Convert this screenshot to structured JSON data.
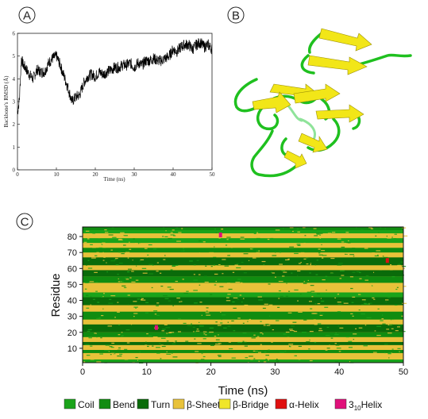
{
  "panels": {
    "a": {
      "label": "A"
    },
    "b": {
      "label": "B"
    },
    "c": {
      "label": "C"
    }
  },
  "chart_data": [
    {
      "type": "line",
      "panel": "A",
      "xlabel": "Time (ns)",
      "ylabel": "Backbone's RMSD (Å)",
      "xlim": [
        0,
        50
      ],
      "ylim": [
        0,
        6
      ],
      "xticks": [
        "0",
        "10",
        "20",
        "30",
        "40",
        "50"
      ],
      "yticks": [
        "0",
        "1",
        "2",
        "3",
        "4",
        "5",
        "6"
      ],
      "series": [
        {
          "color": "#000000",
          "x": [
            0,
            0.5,
            1,
            1.5,
            2,
            3,
            4,
            5,
            6,
            7,
            8,
            9,
            10,
            11,
            12,
            13,
            14,
            15,
            16,
            17,
            18,
            19,
            20,
            21,
            22,
            23,
            24,
            25,
            26,
            27,
            28,
            29,
            30,
            31,
            32,
            33,
            34,
            35,
            36,
            37,
            38,
            39,
            40,
            41,
            42,
            43,
            44,
            45,
            46,
            47,
            48,
            49,
            50
          ],
          "y": [
            2.5,
            3.1,
            4.9,
            4.6,
            4.5,
            4.2,
            4.0,
            4.4,
            4.3,
            4.3,
            4.7,
            4.9,
            5.0,
            4.6,
            4.1,
            3.6,
            3.0,
            3.2,
            3.3,
            3.8,
            4.1,
            4.2,
            4.1,
            4.3,
            4.2,
            4.3,
            4.4,
            4.5,
            4.5,
            4.6,
            4.6,
            4.7,
            4.5,
            4.7,
            4.6,
            4.8,
            4.8,
            4.9,
            4.8,
            4.8,
            4.9,
            5.0,
            5.3,
            5.2,
            5.4,
            5.5,
            5.5,
            5.3,
            5.5,
            5.6,
            5.4,
            5.5,
            5.3
          ]
        }
      ]
    },
    {
      "type": "heatmap",
      "panel": "C",
      "xlabel": "Time (ns)",
      "ylabel": "Residue",
      "xlim": [
        0,
        50
      ],
      "ylim": [
        1,
        86
      ],
      "xticks": [
        "0",
        "10",
        "20",
        "30",
        "40",
        "50"
      ],
      "yticks": [
        "10",
        "20",
        "30",
        "40",
        "50",
        "60",
        "70",
        "80"
      ],
      "colors": {
        "Coil": "#1aa31a",
        "Bend": "#108c10",
        "Turn": "#0a6b0a",
        "β-Sheet": "#e8c23a",
        "β-Bridge": "#f0e62a",
        "α-Helix": "#e01010",
        "3₁₀Helix": "#e0107a"
      },
      "residue_bands": [
        {
          "from": 1,
          "to": 3,
          "state": "Coil"
        },
        {
          "from": 3,
          "to": 7,
          "state": "β-Sheet"
        },
        {
          "from": 7,
          "to": 9,
          "state": "Bend"
        },
        {
          "from": 9,
          "to": 12,
          "state": "β-Sheet"
        },
        {
          "from": 12,
          "to": 14,
          "state": "Turn"
        },
        {
          "from": 14,
          "to": 17,
          "state": "β-Sheet"
        },
        {
          "from": 17,
          "to": 20,
          "state": "Bend"
        },
        {
          "from": 20,
          "to": 25,
          "state": "Turn"
        },
        {
          "from": 25,
          "to": 28,
          "state": "β-Sheet"
        },
        {
          "from": 28,
          "to": 33,
          "state": "Bend"
        },
        {
          "from": 33,
          "to": 37,
          "state": "β-Sheet"
        },
        {
          "from": 37,
          "to": 42,
          "state": "Turn"
        },
        {
          "from": 42,
          "to": 45,
          "state": "Coil"
        },
        {
          "from": 45,
          "to": 51,
          "state": "β-Sheet"
        },
        {
          "from": 51,
          "to": 55,
          "state": "Bend"
        },
        {
          "from": 55,
          "to": 59,
          "state": "Turn"
        },
        {
          "from": 59,
          "to": 62,
          "state": "β-Sheet"
        },
        {
          "from": 62,
          "to": 67,
          "state": "Turn"
        },
        {
          "from": 67,
          "to": 70,
          "state": "β-Sheet"
        },
        {
          "from": 70,
          "to": 73,
          "state": "Bend"
        },
        {
          "from": 73,
          "to": 76,
          "state": "β-Sheet"
        },
        {
          "from": 76,
          "to": 79,
          "state": "Coil"
        },
        {
          "from": 79,
          "to": 82,
          "state": "β-Sheet"
        },
        {
          "from": 82,
          "to": 84,
          "state": "Coil"
        },
        {
          "from": 84,
          "to": 86,
          "state": "Bend"
        }
      ],
      "helix_events": [
        {
          "time": 11.5,
          "residue": 23,
          "state": "3₁₀Helix"
        },
        {
          "time": 21.5,
          "residue": 81,
          "state": "3₁₀Helix"
        },
        {
          "time": 47.5,
          "residue": 65,
          "state": "α-Helix"
        }
      ]
    }
  ],
  "legend": [
    {
      "label": "Coil",
      "color": "#1aa31a"
    },
    {
      "label": "Bend",
      "color": "#108c10"
    },
    {
      "label": "Turn",
      "color": "#0a6b0a"
    },
    {
      "label": "β-Sheet",
      "color": "#e8c23a"
    },
    {
      "label": "β-Bridge",
      "color": "#f0e62a"
    },
    {
      "label": "α-Helix",
      "color": "#e01010"
    },
    {
      "label": "3",
      "sub": "10",
      "tail": "Helix",
      "color": "#e0107a"
    }
  ]
}
